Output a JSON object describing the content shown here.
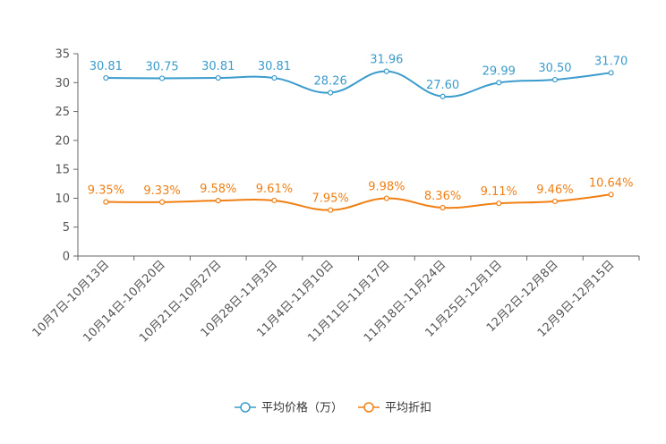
{
  "chart_data": {
    "type": "line",
    "categories": [
      "10月7日-10月13日",
      "10月14日-10月20日",
      "10月21日-10月27日",
      "10月28日-11月3日",
      "11月4日-11月10日",
      "11月11日-11月17日",
      "11月18日-11月24日",
      "11月25日-12月1日",
      "12月2日-12月8日",
      "12月9日-12月15日"
    ],
    "ylim": [
      0,
      35
    ],
    "yticks": [
      0,
      5,
      10,
      15,
      20,
      25,
      30,
      35
    ],
    "series": [
      {
        "name": "平均价格（万）",
        "color": "#3a9bcc",
        "values": [
          30.81,
          30.75,
          30.81,
          30.81,
          28.26,
          31.96,
          27.6,
          29.99,
          30.5,
          31.7
        ],
        "labels": [
          "30.81",
          "30.75",
          "30.81",
          "30.81",
          "28.26",
          "31.96",
          "27.60",
          "29.99",
          "30.50",
          "31.70"
        ]
      },
      {
        "name": "平均折扣",
        "color": "#f07f14",
        "values": [
          9.35,
          9.33,
          9.58,
          9.61,
          7.95,
          9.98,
          8.36,
          9.11,
          9.46,
          10.64
        ],
        "labels": [
          "9.35%",
          "9.33%",
          "9.58%",
          "9.61%",
          "7.95%",
          "9.98%",
          "8.36%",
          "9.11%",
          "9.46%",
          "10.64%"
        ]
      }
    ]
  }
}
